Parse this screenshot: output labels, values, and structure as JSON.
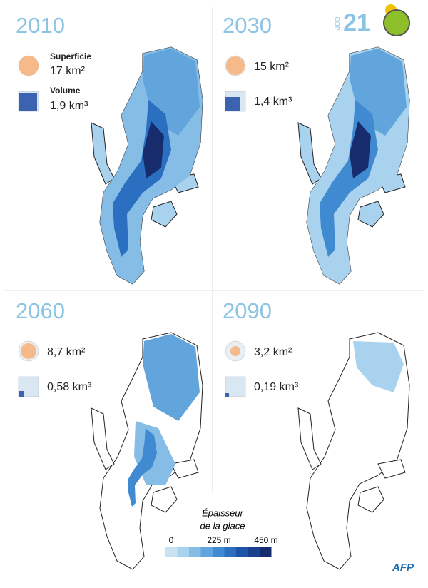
{
  "logo": {
    "cop": "COP",
    "number": "21"
  },
  "panels": [
    {
      "year": "2010",
      "area_label": "Superficie",
      "area": "17 km²",
      "volume_label": "Volume",
      "volume": "1,9 km³"
    },
    {
      "year": "2030",
      "area": "15 km²",
      "volume": "1,4 km³"
    },
    {
      "year": "2060",
      "area": "8,7 km²",
      "volume": "0,58 km³"
    },
    {
      "year": "2090",
      "area": "3,2 km²",
      "volume": "0,19 km³"
    }
  ],
  "legend": {
    "title_line1": "Épaisseur",
    "title_line2": "de la glace",
    "ticks": [
      "0",
      "225 m",
      "450 m"
    ]
  },
  "credit": "AFP"
}
